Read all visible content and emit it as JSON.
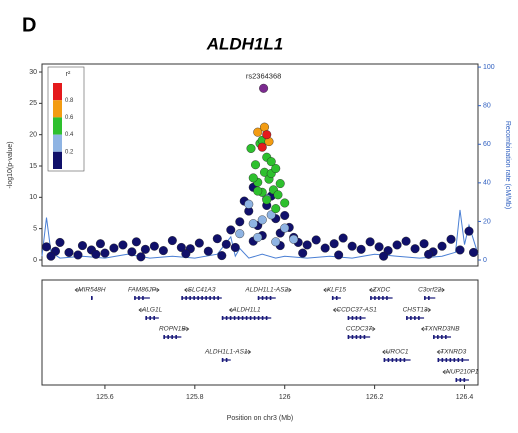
{
  "panel_label": "D",
  "chart_data": {
    "type": "scatter",
    "title": "ALDH1L1",
    "ylabel": "-log10(p-value)",
    "y2label": "Recombination rate (cM/Mb)",
    "xlabel": "Position on chr3 (Mb)",
    "xlim": [
      125.46,
      126.43
    ],
    "xticks": [
      125.6,
      125.8,
      126,
      126.2,
      126.4
    ],
    "ylim": [
      -0.96,
      31.28
    ],
    "yticks": [
      0,
      5,
      10,
      15,
      20,
      25,
      30
    ],
    "y2lim": [
      -3.1,
      101.6
    ],
    "y2ticks": [
      0,
      20,
      40,
      60,
      80,
      100
    ],
    "annotation": {
      "text": "rs2364368",
      "x": 125.953,
      "y": 27.4
    },
    "legend": {
      "title": "r²",
      "ticks": [
        0.2,
        0.4,
        0.6,
        0.8
      ],
      "colors": [
        "#e41a1c",
        "#f39c12",
        "#2ec02e",
        "#8fb4e3",
        "#10106a"
      ]
    },
    "series": [
      {
        "color": "#10106a",
        "x": [
          125.47,
          125.49,
          125.5,
          125.52,
          125.54,
          125.55,
          125.57,
          125.59,
          125.6,
          125.62,
          125.64,
          125.66,
          125.67,
          125.69,
          125.71,
          125.73,
          125.75,
          125.77,
          125.79,
          125.81,
          125.83,
          125.85,
          125.87,
          125.88,
          125.9,
          125.91,
          125.92,
          125.93,
          125.94,
          125.95,
          125.96,
          125.97,
          125.98,
          125.99,
          126.0,
          126.01,
          126.02,
          126.03,
          126.05,
          126.07,
          126.09,
          126.11,
          126.13,
          126.15,
          126.17,
          126.19,
          126.21,
          126.23,
          126.25,
          126.27,
          126.29,
          126.31,
          126.33,
          126.35,
          126.37,
          126.39,
          126.41,
          125.48,
          125.58,
          125.68,
          125.78,
          125.86,
          125.89,
          125.93,
          125.99,
          126.04,
          126.12,
          126.22,
          126.32,
          126.42
        ],
        "values": [
          2.1,
          1.4,
          2.8,
          1.2,
          0.8,
          2.3,
          1.6,
          2.6,
          1.1,
          1.9,
          2.4,
          1.3,
          2.9,
          1.7,
          2.2,
          1.5,
          3.1,
          2.0,
          1.8,
          2.7,
          1.4,
          3.4,
          2.5,
          4.8,
          6.1,
          9.4,
          7.8,
          11.6,
          5.5,
          3.9,
          8.7,
          10.2,
          6.6,
          4.3,
          7.1,
          5.2,
          3.6,
          2.8,
          2.4,
          3.2,
          1.9,
          2.6,
          3.5,
          2.2,
          1.7,
          2.9,
          2.1,
          1.5,
          2.4,
          3.0,
          1.8,
          2.6,
          1.3,
          2.2,
          3.3,
          1.6,
          4.6,
          0.6,
          0.9,
          0.5,
          1.0,
          0.7,
          2.0,
          3.0,
          2.3,
          1.1,
          0.8,
          0.6,
          0.9,
          1.2
        ]
      },
      {
        "color": "#8fb4e3",
        "x": [
          125.9,
          125.92,
          125.94,
          125.95,
          125.97,
          125.98,
          126.0,
          126.02,
          125.96,
          125.93
        ],
        "values": [
          4.2,
          8.9,
          3.6,
          6.4,
          7.2,
          2.9,
          5.1,
          3.3,
          9.8,
          5.8
        ]
      },
      {
        "color": "#2ec02e",
        "x": [
          125.925,
          125.935,
          125.94,
          125.945,
          125.95,
          125.955,
          125.96,
          125.965,
          125.97,
          125.975,
          125.98,
          125.985,
          125.99,
          125.93,
          125.95,
          125.96,
          125.97,
          125.94,
          125.98,
          126.0
        ],
        "values": [
          17.8,
          15.2,
          12.4,
          18.6,
          10.8,
          14.0,
          16.4,
          12.9,
          13.8,
          11.2,
          14.6,
          10.4,
          12.2,
          13.1,
          19.1,
          9.6,
          15.7,
          11.0,
          8.2,
          9.1
        ]
      },
      {
        "color": "#f39c12",
        "x": [
          125.94,
          125.955,
          125.965
        ],
        "values": [
          20.4,
          21.2,
          18.9
        ]
      },
      {
        "color": "#e41a1c",
        "x": [
          125.96,
          125.95
        ],
        "values": [
          20.0,
          18.0
        ]
      },
      {
        "color": "#7b2a8f",
        "x": [
          125.953
        ],
        "values": [
          27.4
        ]
      }
    ],
    "recombination": {
      "color": "#4a7fd4",
      "axis": "y2",
      "x": [
        125.46,
        125.47,
        125.48,
        125.5,
        125.55,
        125.6,
        125.65,
        125.7,
        125.75,
        125.8,
        125.85,
        125.88,
        125.89,
        125.9,
        125.92,
        125.95,
        125.98,
        126.0,
        126.05,
        126.1,
        126.15,
        126.2,
        126.25,
        126.3,
        126.35,
        126.38,
        126.39,
        126.4,
        126.41,
        126.43
      ],
      "values": [
        2,
        22,
        4,
        1,
        2,
        1,
        3,
        1,
        2,
        1,
        3,
        12,
        2,
        6,
        1,
        3,
        1,
        2,
        1,
        2,
        1,
        3,
        2,
        1,
        2,
        4,
        26,
        8,
        18,
        3
      ]
    },
    "genes": [
      {
        "name": "MIR548H",
        "start": 125.569,
        "end": 125.573,
        "strand": "-",
        "row": 0
      },
      {
        "name": "FAM86JP",
        "start": 125.665,
        "end": 125.7,
        "strand": "+",
        "row": 0
      },
      {
        "name": "SLC41A3",
        "start": 125.77,
        "end": 125.86,
        "strand": "-",
        "row": 0
      },
      {
        "name": "ALDH1L1-AS2",
        "start": 125.94,
        "end": 125.98,
        "strand": "+",
        "row": 0
      },
      {
        "name": "KLF15",
        "start": 126.105,
        "end": 126.125,
        "strand": "-",
        "row": 0
      },
      {
        "name": "ZXDC",
        "start": 126.19,
        "end": 126.24,
        "strand": "-",
        "row": 0
      },
      {
        "name": "C3orf22",
        "start": 126.31,
        "end": 126.335,
        "strand": "+",
        "row": 0
      },
      {
        "name": "ALG1L",
        "start": 125.69,
        "end": 125.72,
        "strand": "-",
        "row": 1
      },
      {
        "name": "ALDH1L1",
        "start": 125.86,
        "end": 125.97,
        "strand": "-",
        "row": 1
      },
      {
        "name": "CCDC37-AS1",
        "start": 126.14,
        "end": 126.18,
        "strand": "-",
        "row": 1
      },
      {
        "name": "CHST13",
        "start": 126.27,
        "end": 126.31,
        "strand": "+",
        "row": 1
      },
      {
        "name": "ROPN1B",
        "start": 125.73,
        "end": 125.77,
        "strand": "+",
        "row": 2
      },
      {
        "name": "CCDC37",
        "start": 126.14,
        "end": 126.19,
        "strand": "+",
        "row": 2
      },
      {
        "name": "TXNRD3NB",
        "start": 126.33,
        "end": 126.37,
        "strand": "-",
        "row": 2
      },
      {
        "name": "ALDH1L1-AS1",
        "start": 125.86,
        "end": 125.88,
        "strand": "+",
        "row": 3
      },
      {
        "name": "UROC1",
        "start": 126.22,
        "end": 126.28,
        "strand": "-",
        "row": 3
      },
      {
        "name": "TXNRD3",
        "start": 126.34,
        "end": 126.41,
        "strand": "-",
        "row": 3
      },
      {
        "name": "NUP210P1",
        "start": 126.38,
        "end": 126.41,
        "strand": "-",
        "row": 4
      }
    ]
  }
}
